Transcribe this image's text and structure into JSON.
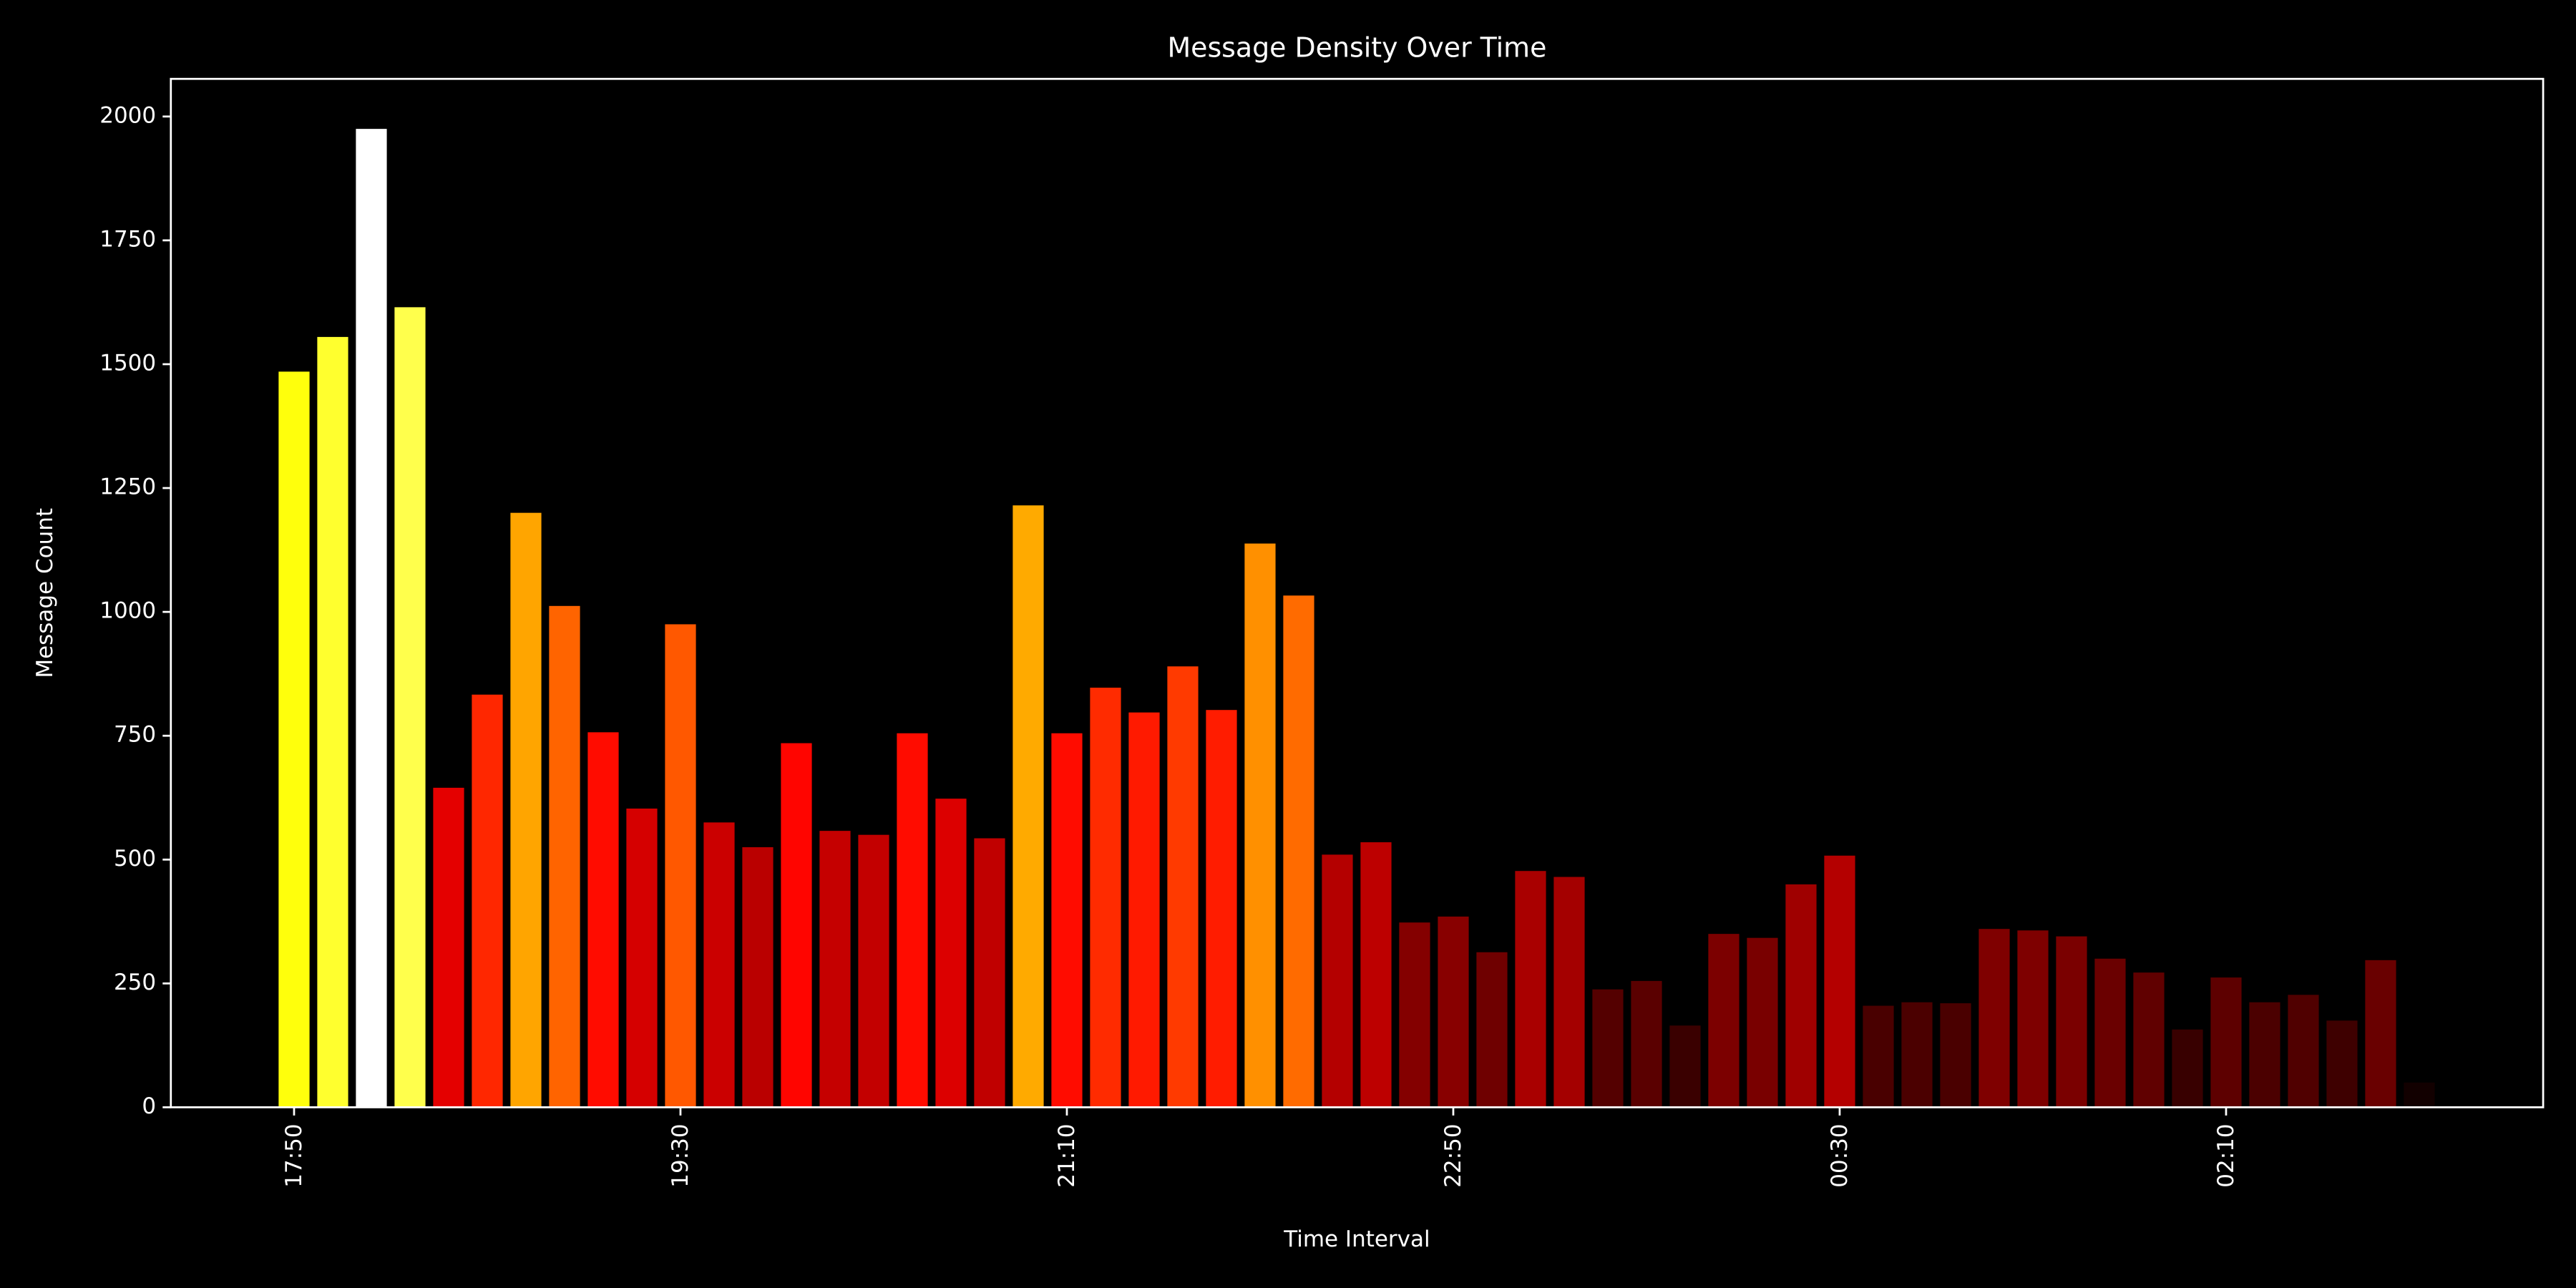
{
  "chart_data": {
    "type": "bar",
    "title": "Message Density Over Time",
    "xlabel": "Time Interval",
    "ylabel": "Message Count",
    "categories": [
      "17:50",
      null,
      null,
      null,
      null,
      null,
      null,
      null,
      null,
      null,
      "19:30",
      null,
      null,
      null,
      null,
      null,
      null,
      null,
      null,
      null,
      "21:10",
      null,
      null,
      null,
      null,
      null,
      null,
      null,
      null,
      null,
      "22:50",
      null,
      null,
      null,
      null,
      null,
      null,
      null,
      null,
      null,
      "00:30",
      null,
      null,
      null,
      null,
      null,
      null,
      null,
      null,
      null,
      "02:10",
      null,
      null,
      null,
      null,
      null
    ],
    "values": [
      1485,
      1555,
      1975,
      1615,
      645,
      833,
      1200,
      1012,
      757,
      603,
      975,
      575,
      525,
      735,
      558,
      550,
      755,
      623,
      543,
      1215,
      755,
      847,
      797,
      890,
      802,
      1138,
      1033,
      510,
      535,
      373,
      385,
      313,
      477,
      465,
      238,
      255,
      165,
      350,
      342,
      450,
      508,
      205,
      212,
      210,
      360,
      357,
      345,
      300,
      272,
      157,
      262,
      212,
      227,
      175,
      297,
      50
    ],
    "colors": [
      "#ffff0c",
      "#ffff2e",
      "#ffffff",
      "#ffff4c",
      "#e40000",
      "#ff2700",
      "#ffa500",
      "#ff6400",
      "#ff0c00",
      "#d50000",
      "#ff5800",
      "#cb0000",
      "#ba0000",
      "#ff0500",
      "#c50000",
      "#c30000",
      "#ff0c00",
      "#dc0000",
      "#c00000",
      "#ffaa00",
      "#ff0c00",
      "#ff2b00",
      "#ff1a00",
      "#ff3a00",
      "#ff1c00",
      "#ff9000",
      "#ff6b00",
      "#b40000",
      "#bd0000",
      "#840000",
      "#880000",
      "#6f0000",
      "#a90000",
      "#a40000",
      "#540000",
      "#5a0000",
      "#3a0000",
      "#7c0000",
      "#790000",
      "#9f0000",
      "#b40000",
      "#490000",
      "#4b0000",
      "#4a0000",
      "#7f0000",
      "#7e0000",
      "#7a0000",
      "#6a0000",
      "#600000",
      "#380000",
      "#5d0000",
      "#4b0000",
      "#500000",
      "#3e0000",
      "#690000",
      "#120000"
    ],
    "ylim": [
      0,
      2076
    ],
    "yticks": [
      0,
      250,
      500,
      750,
      1000,
      1250,
      1500,
      1750,
      2000
    ],
    "grid": false
  }
}
